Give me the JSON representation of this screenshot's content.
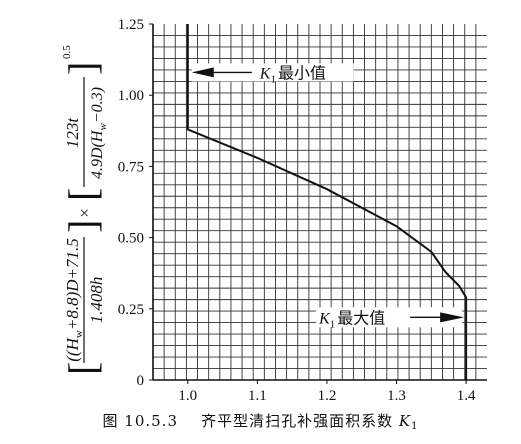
{
  "chart_data": {
    "type": "line",
    "x_ticks": [
      "1.0",
      "1.1",
      "1.2",
      "1.3",
      "1.4"
    ],
    "y_ticks": [
      "0",
      "0.25",
      "0.50",
      "0.75",
      "1.00",
      "1.25"
    ],
    "xlim": [
      0.95,
      1.43
    ],
    "ylim": [
      0,
      1.25
    ],
    "grid": true,
    "x": [
      1.0,
      1.0,
      1.1,
      1.2,
      1.3,
      1.35,
      1.37,
      1.39,
      1.4,
      1.4
    ],
    "y": [
      1.25,
      0.88,
      0.78,
      0.67,
      0.54,
      0.45,
      0.38,
      0.33,
      0.29,
      0
    ],
    "ylabel": {
      "lead": "(H",
      "w1": "w",
      "middle": "+8.8)D+71.5",
      "den1": "1.408h",
      "times": "×",
      "num2": "123t",
      "den2_lead": "4.9D(H",
      "w2": "w",
      "den2_tail": "−0.3)",
      "exponent": "0.5"
    },
    "annotations": [
      {
        "k": "K",
        "sub": "1",
        "text": "最小值"
      },
      {
        "k": "K",
        "sub": "1",
        "text": "最大值"
      }
    ]
  },
  "caption": {
    "figure": "图 10.5.3",
    "text": "齐平型清扫孔补强面积系数",
    "k": "K",
    "sub": "1"
  }
}
